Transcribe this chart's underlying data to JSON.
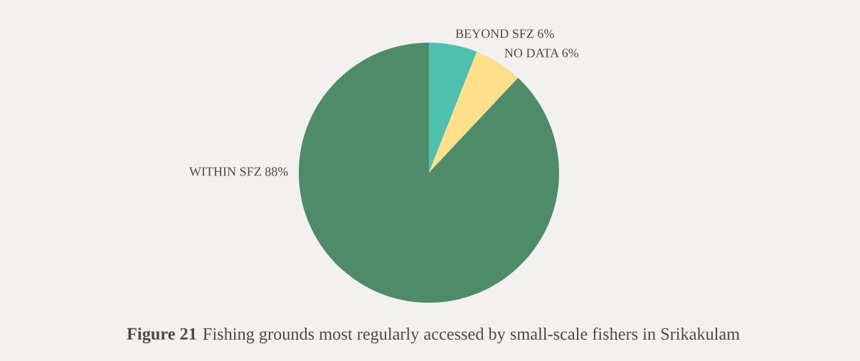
{
  "chart_data": {
    "type": "pie",
    "title": "Figure 21",
    "subtitle": "Fishing grounds most regularly accessed by small-scale fishers in Srikakulam",
    "categories": [
      "BEYOND SFZ",
      "NO DATA",
      "WITHIN SFZ"
    ],
    "values": [
      6,
      6,
      88
    ],
    "value_labels": [
      "6%",
      "6%",
      "88%"
    ],
    "colors": [
      "#4dc0af",
      "#fddf8c",
      "#4e8c67"
    ]
  }
}
